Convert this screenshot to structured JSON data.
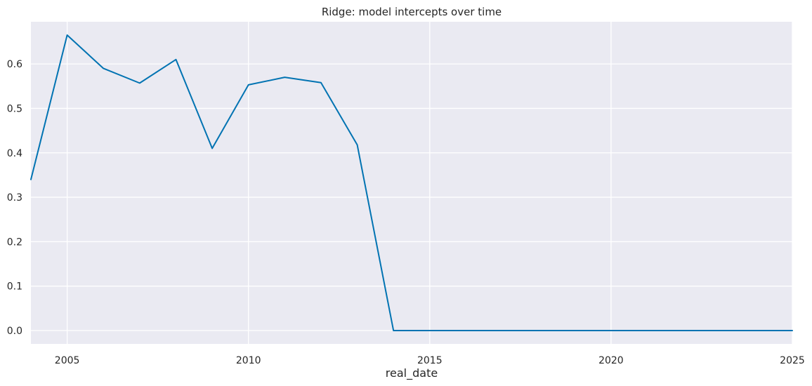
{
  "chart_data": {
    "type": "line",
    "title": "Ridge: model intercepts over time",
    "xlabel": "real_date",
    "ylabel": "",
    "xlim": [
      2004,
      2025
    ],
    "ylim": [
      -0.03,
      0.695
    ],
    "x_ticks": [
      2005,
      2010,
      2015,
      2020,
      2025
    ],
    "y_ticks": [
      0.0,
      0.1,
      0.2,
      0.3,
      0.4,
      0.5,
      0.6
    ],
    "y_tick_labels": [
      "0.0",
      "0.1",
      "0.2",
      "0.3",
      "0.4",
      "0.5",
      "0.6"
    ],
    "grid": true,
    "series": [
      {
        "color": "#0173b2",
        "x": [
          2004,
          2005,
          2006,
          2007,
          2008,
          2009,
          2010,
          2011,
          2012,
          2013,
          2014,
          2015,
          2016,
          2017,
          2018,
          2019,
          2020,
          2021,
          2022,
          2023,
          2024,
          2025
        ],
        "values": [
          0.34,
          0.665,
          0.59,
          0.557,
          0.61,
          0.41,
          0.553,
          0.57,
          0.558,
          0.418,
          0.0,
          0.0,
          0.0,
          0.0,
          0.0,
          0.0,
          0.0,
          0.0,
          0.0,
          0.0,
          0.0,
          0.0
        ]
      }
    ],
    "colors": {
      "plot_background": "#eaeaf2",
      "grid": "#ffffff",
      "text": "#262626"
    }
  }
}
